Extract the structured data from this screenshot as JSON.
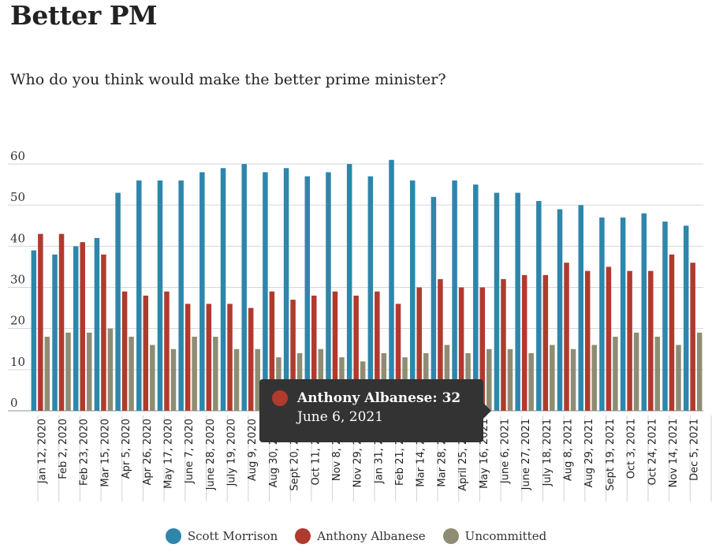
{
  "header": {
    "title": "Better PM",
    "subtitle": "Who do you think would make the better prime minister?"
  },
  "legend": [
    {
      "name": "Scott Morrison",
      "color": "#2e86ab"
    },
    {
      "name": "Anthony Albanese",
      "color": "#b03a2e"
    },
    {
      "name": "Uncommitted",
      "color": "#8e8c73"
    }
  ],
  "tooltip": {
    "series": "Anthony Albanese",
    "value_text": "Anthony Albanese: 32",
    "date": "June 6, 2021",
    "color": "#b03a2e"
  },
  "chart_data": {
    "type": "bar",
    "title": "Better PM",
    "subtitle": "Who do you think would make the better prime minister?",
    "ylim": [
      0,
      60
    ],
    "yticks": [
      0,
      10,
      20,
      30,
      40,
      50,
      60
    ],
    "grid": true,
    "legend_position": "bottom",
    "categories": [
      "Jan 12, 2020",
      "Feb 2, 2020",
      "Feb 23, 2020",
      "Mar 15, 2020",
      "Apr 5, 2020",
      "Apr 26, 2020",
      "May 17, 2020",
      "June 7, 2020",
      "June 28, 2020",
      "July 19, 2020",
      "Aug 9, 2020",
      "Aug 30, 2020",
      "Sept 20, 2020",
      "Oct 11, 2020",
      "Nov 8, 2020",
      "Nov 29, 2020",
      "Jan 31, 2021",
      "Feb 21, 2021",
      "Mar 14, 2021",
      "Mar 28, 2021",
      "April 25, 2021",
      "May 16, 2021",
      "June 6, 2021",
      "June 27, 2021",
      "July 18, 2021",
      "Aug 8, 2021",
      "Aug 29, 2021",
      "Sept 19, 2021",
      "Oct 3, 2021",
      "Oct 24, 2021",
      "Nov 14, 2021",
      "Dec 5, 2021"
    ],
    "series": [
      {
        "name": "Scott Morrison",
        "color": "#2e86ab",
        "values": [
          39,
          38,
          40,
          42,
          53,
          56,
          56,
          56,
          58,
          59,
          60,
          58,
          59,
          57,
          58,
          60,
          57,
          61,
          56,
          52,
          56,
          55,
          53,
          53,
          51,
          49,
          50,
          47,
          47,
          48,
          46,
          45
        ]
      },
      {
        "name": "Anthony Albanese",
        "color": "#b03a2e",
        "values": [
          43,
          43,
          41,
          38,
          29,
          28,
          29,
          26,
          26,
          26,
          25,
          29,
          27,
          28,
          29,
          28,
          29,
          26,
          30,
          32,
          30,
          30,
          32,
          33,
          33,
          36,
          34,
          35,
          34,
          34,
          38,
          36
        ]
      },
      {
        "name": "Uncommitted",
        "color": "#8e8c73",
        "values": [
          18,
          19,
          19,
          20,
          18,
          16,
          15,
          18,
          18,
          15,
          15,
          13,
          14,
          15,
          13,
          12,
          14,
          13,
          14,
          16,
          14,
          15,
          15,
          14,
          16,
          15,
          16,
          18,
          19,
          18,
          16,
          19
        ]
      }
    ]
  }
}
